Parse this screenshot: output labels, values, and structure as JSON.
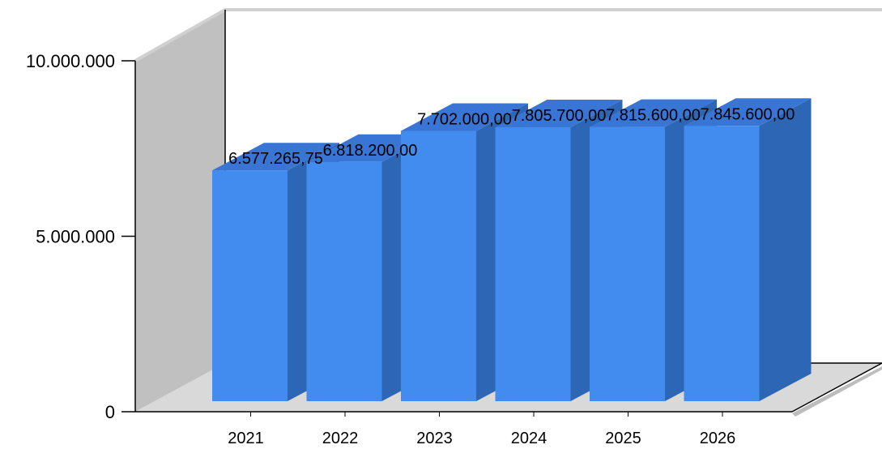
{
  "chart_data": {
    "type": "bar",
    "categories": [
      "2021",
      "2022",
      "2023",
      "2024",
      "2025",
      "2026"
    ],
    "values": [
      6577265.75,
      6818200.0,
      7702000.0,
      7805700.0,
      7815600.0,
      7845600.0
    ],
    "data_labels": [
      "6.577.265,75",
      "6.818.200,00",
      "7.702.000,00",
      "7.805.700,00",
      "7.815.600,00",
      "7.845.600,00"
    ],
    "y_ticks": [
      {
        "value": 0,
        "label": "0"
      },
      {
        "value": 5000000,
        "label": "5.000.000"
      },
      {
        "value": 10000000,
        "label": "10.000.000"
      }
    ],
    "ylim": [
      0,
      10000000
    ],
    "title": "",
    "xlabel": "",
    "ylabel": "",
    "three_d": true,
    "grid": false,
    "legend": "none",
    "colors": {
      "bar_front": "#428bef",
      "bar_top": "#3875d4",
      "bar_side": "#2e66b6",
      "back_wall": "#c0c0c0",
      "floor": "#d9d9d9",
      "frame": "#000000"
    }
  }
}
